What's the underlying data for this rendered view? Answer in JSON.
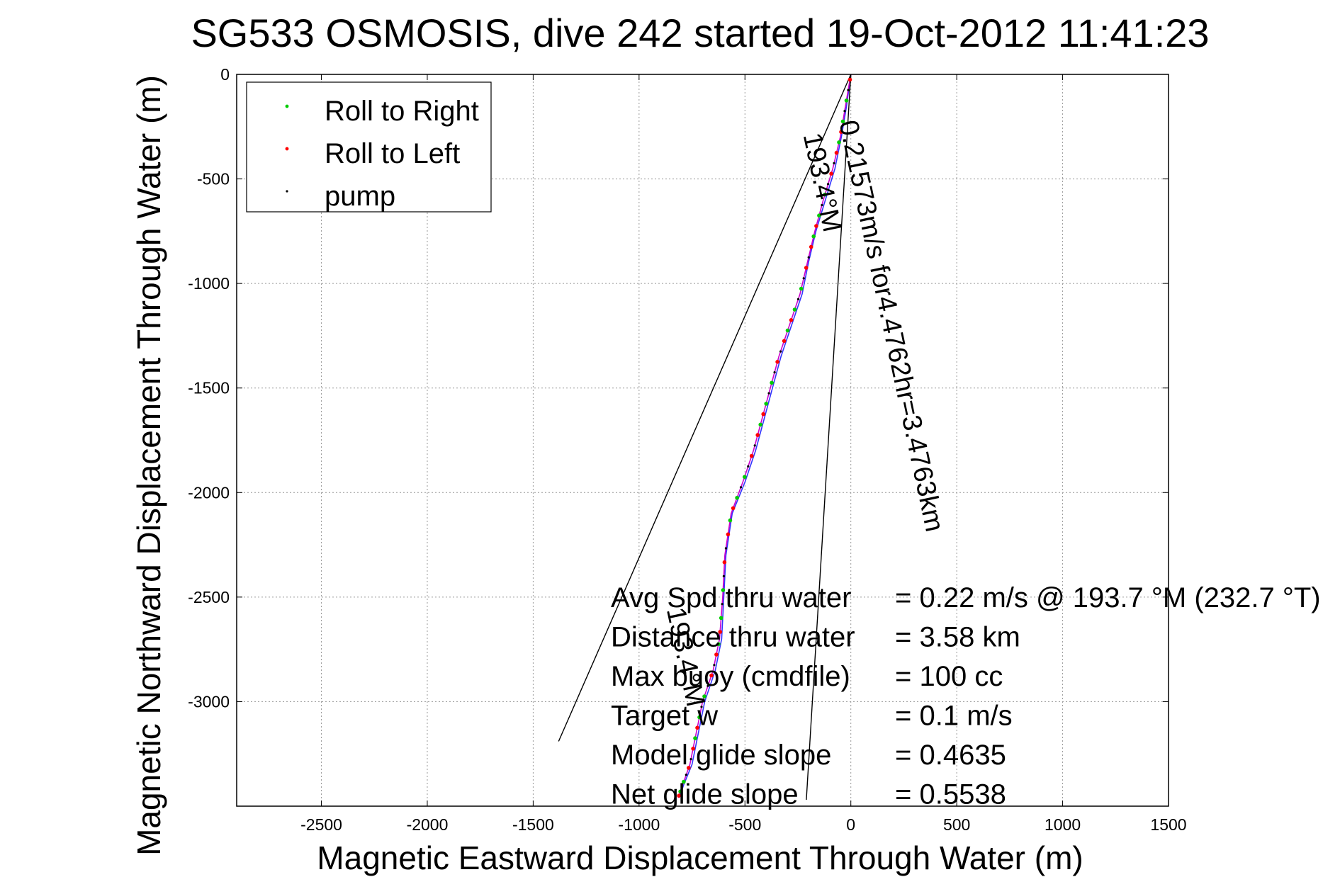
{
  "chart_data": {
    "type": "line",
    "title": "SG533 OSMOSIS, dive 242 started 19-Oct-2012 11:41:23",
    "xlabel": "Magnetic Eastward Displacement Through Water (m)",
    "ylabel": "Magnetic Northward Displacement Through Water (m)",
    "xlim": [
      -2900,
      1500
    ],
    "ylim": [
      -3500,
      0
    ],
    "xticks": [
      -2500,
      -2000,
      -1500,
      -1000,
      -500,
      0,
      500,
      1000,
      1500
    ],
    "yticks": [
      0,
      -500,
      -1000,
      -1500,
      -2000,
      -2500,
      -3000
    ],
    "grid": true,
    "legend": {
      "placement": "top-left",
      "entries": [
        {
          "label": "Roll to Right",
          "color": "#00cc00"
        },
        {
          "label": "Roll to Left",
          "color": "#ff0000"
        },
        {
          "label": "pump",
          "color": "#000000"
        }
      ]
    },
    "series": [
      {
        "color": "#3333ff",
        "x": [
          0,
          -20,
          -45,
          -75,
          -120,
          -165,
          -200,
          -230,
          -280,
          -330,
          -370,
          -410,
          -450,
          -500,
          -560,
          -590,
          -600,
          -610,
          -640,
          -690,
          -720,
          -750,
          -790,
          -810
        ],
        "y": [
          0,
          -150,
          -300,
          -450,
          -600,
          -750,
          -900,
          -1050,
          -1200,
          -1350,
          -1500,
          -1650,
          -1800,
          -1950,
          -2100,
          -2300,
          -2500,
          -2700,
          -2850,
          -3000,
          -3150,
          -3300,
          -3400,
          -3460
        ]
      },
      {
        "color": "#cc00cc",
        "x": [
          0,
          -25,
          -50,
          -85,
          -130,
          -170,
          -205,
          -240,
          -290,
          -340,
          -380,
          -420,
          -460,
          -510,
          -565,
          -595,
          -605,
          -620,
          -650,
          -700,
          -730,
          -760,
          -795,
          -815
        ],
        "y": [
          0,
          -150,
          -300,
          -450,
          -600,
          -750,
          -900,
          -1050,
          -1200,
          -1350,
          -1500,
          -1650,
          -1800,
          -1950,
          -2100,
          -2300,
          -2500,
          -2700,
          -2850,
          -3000,
          -3150,
          -3300,
          -3400,
          -3460
        ]
      },
      {
        "color": "#000000",
        "x": [
          0,
          -1380
        ],
        "y": [
          0,
          -3190
        ]
      },
      {
        "color": "#000000",
        "x": [
          0,
          -210
        ],
        "y": [
          0,
          -3470
        ]
      }
    ],
    "annotations": [
      {
        "text": "0.21573m/s for4.4762hr=3.4763km",
        "x": -55,
        "y": -230,
        "angle": 78
      },
      {
        "text": "193.4°M",
        "x": -225,
        "y": -290,
        "angle": 78
      },
      {
        "text": "193.4°M",
        "x": -870,
        "y": -2560,
        "angle": 78
      }
    ],
    "stats": [
      {
        "label": "Avg Spd thru water",
        "value": "=  0.22 m/s @ 193.7 °M (232.7 °T)"
      },
      {
        "label": "Distance thru water",
        "value": "=  3.58 km"
      },
      {
        "label": "Max buoy (cmdfile)",
        "value": "= 100 cc"
      },
      {
        "label": "Target w",
        "value": "= 0.1 m/s"
      },
      {
        "label": "Model glide slope",
        "value": "= 0.4635"
      },
      {
        "label": "Net glide slope",
        "value": "= 0.5538"
      }
    ]
  }
}
